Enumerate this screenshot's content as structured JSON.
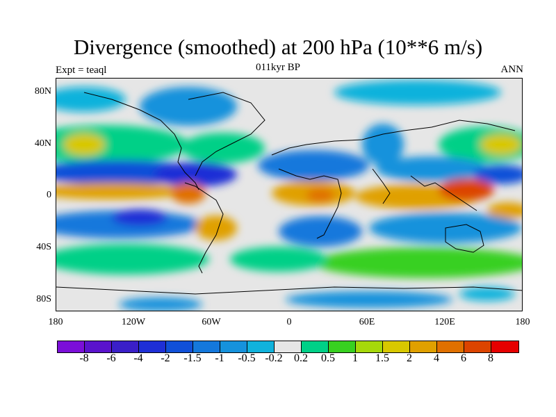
{
  "header": {
    "title": "Divergence (smoothed) at 200 hPa (10**6 m/s)",
    "left_label": "Expt = teaql",
    "center_label": "011kyr BP",
    "right_label": "ANN"
  },
  "axes": {
    "lat_labels": [
      "80N",
      "40N",
      "0",
      "40S",
      "80S"
    ],
    "lon_labels": [
      "180",
      "120W",
      "60W",
      "0",
      "60E",
      "120E",
      "180"
    ]
  },
  "colorbar": {
    "colors": [
      "#7b0fd8",
      "#5a13cc",
      "#3a1fc8",
      "#1e2fd6",
      "#1050d8",
      "#1478dc",
      "#1692dc",
      "#10b2dc",
      "#e6e6e6",
      "#00d087",
      "#38d020",
      "#a6d80a",
      "#d8c800",
      "#e0a000",
      "#e07000",
      "#dc4400",
      "#e60000"
    ],
    "labels": [
      "-8",
      "-6",
      "-4",
      "-2",
      "-1.5",
      "-1",
      "-0.5",
      "-0.2",
      "0.2",
      "0.5",
      "1",
      "1.5",
      "2",
      "4",
      "6",
      "8"
    ]
  }
}
